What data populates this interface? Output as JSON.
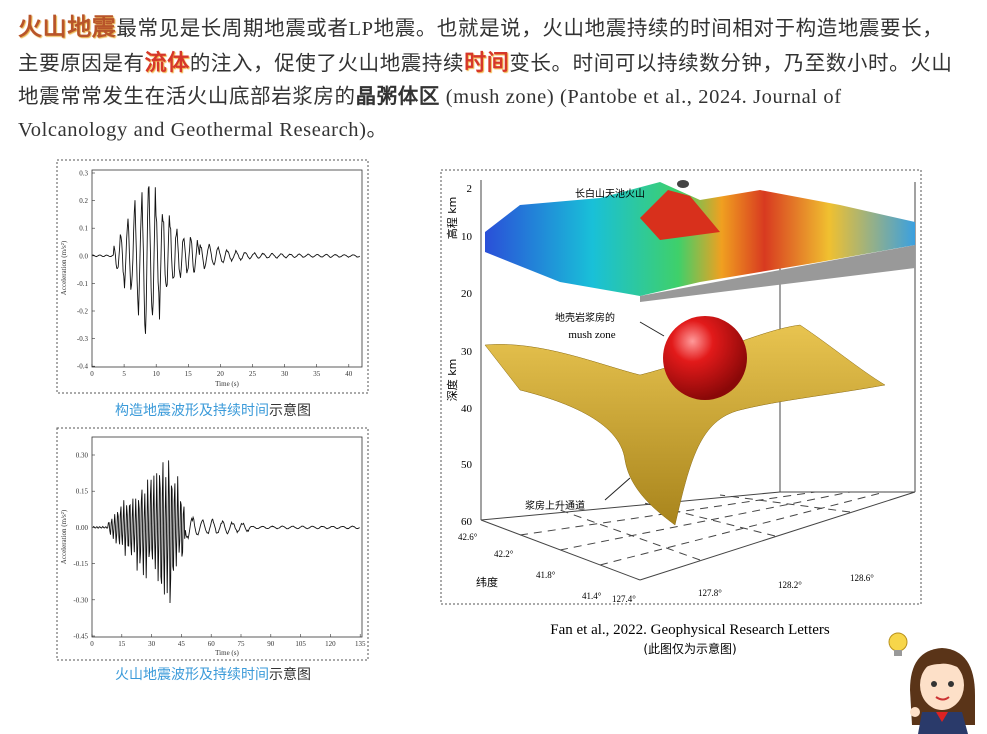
{
  "paragraph": [
    "火山地震",
    "最常见是长周期地震或者LP地震。也就是说，火山地震持续的时间相对于构造地震要长，主要原因是有",
    "流体",
    "的注入，促使了火山地震持续",
    "时间",
    "变长。时间可以持续数分钟，乃至数小时。火山地震常常发生在活火山底部岩浆房的",
    "晶粥体区",
    " (mush zone) (Pantobe et al., 2024. Journal of Volcanology and Geothermal Research)。"
  ],
  "figures": [
    {
      "y_label": "Acceleration (m/s²)",
      "x_label": "Time (s)",
      "xticks": [
        "0",
        "5",
        "10",
        "15",
        "20",
        "25",
        "30",
        "35",
        "40"
      ],
      "yticks": [
        "0.3",
        "0.2",
        "0.1",
        "0.0",
        "-0.1",
        "-0.2",
        "-0.3",
        "-0.4"
      ],
      "caption_highlight": "构造地震波形及持续时间",
      "caption_rest": "示意图"
    },
    {
      "y_label": "Acceleration (m/s²)",
      "x_label": "Time (s)",
      "xticks": [
        "0",
        "15",
        "30",
        "45",
        "60",
        "75",
        "90",
        "105",
        "120",
        "135"
      ],
      "yticks": [
        "0.30",
        "0.15",
        "0.00",
        "-0.15",
        "-0.30",
        "-0.45"
      ],
      "caption_highlight": "火山地震波形及持续时间",
      "caption_rest": "示意图"
    }
  ],
  "volcano_figure": {
    "summit_label": "长白山天池火山",
    "elevation_label": "高程 km",
    "depth_label": "深度 km",
    "depth_ticks": [
      "2",
      "10",
      "20",
      "30",
      "40",
      "50",
      "60"
    ],
    "chamber_label": [
      "地壳岩浆房的",
      "mush zone"
    ],
    "conduit_label": "浆房上升通道",
    "latitude_label": "纬度",
    "latitude_ticks": [
      "42.6°",
      "42.2°",
      "41.8°",
      "41.4°"
    ],
    "longitude_ticks": [
      "127.4°",
      "127.8°",
      "128.2°",
      "128.6°"
    ]
  },
  "citation": "Fan et al., 2022. Geophysical Research Letters",
  "note": "(此图仅为示意图)"
}
